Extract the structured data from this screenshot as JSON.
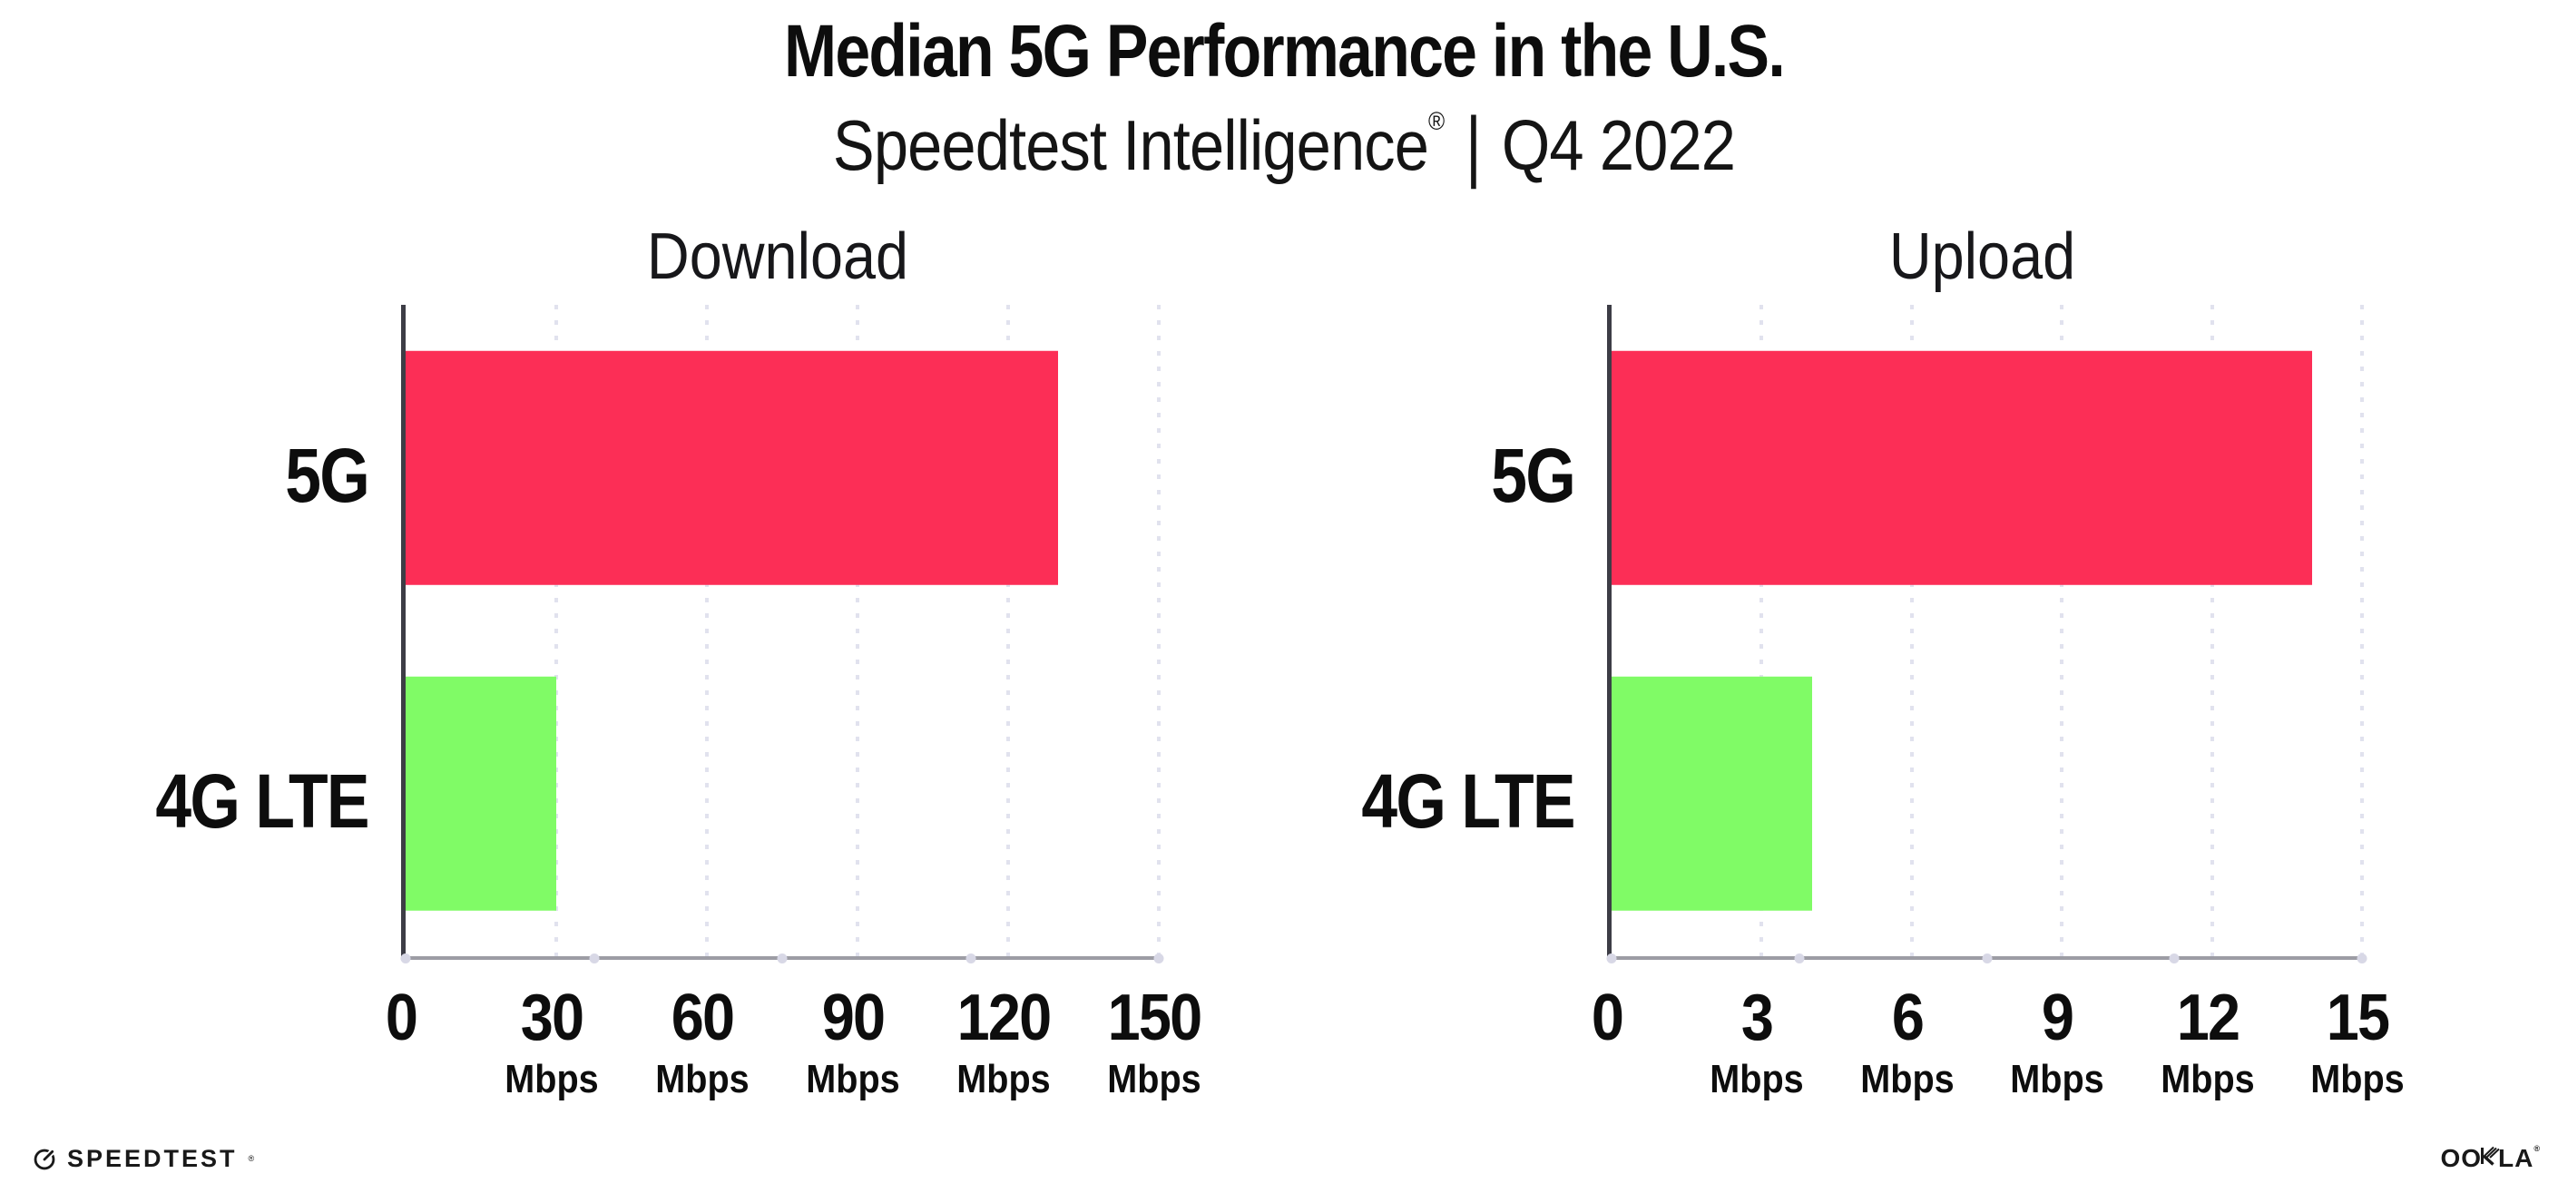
{
  "header": {
    "title": "Median 5G Performance in the U.S.",
    "subtitle_brand": "Speedtest Intelligence",
    "subtitle_registered": "®",
    "subtitle_separator": "|",
    "subtitle_period": "Q4 2022"
  },
  "chart_data": [
    {
      "type": "bar",
      "orientation": "horizontal",
      "title": "Download",
      "categories": [
        "5G",
        "4G LTE"
      ],
      "values": [
        130,
        30
      ],
      "unit": "Mbps",
      "xticks": [
        0,
        30,
        60,
        90,
        120,
        150
      ],
      "xlim": [
        0,
        150
      ],
      "grid": "dotted-vertical",
      "legend": "none",
      "bar_colors": [
        "#FC2E56",
        "#80FB66"
      ]
    },
    {
      "type": "bar",
      "orientation": "horizontal",
      "title": "Upload",
      "categories": [
        "5G",
        "4G LTE"
      ],
      "values": [
        14,
        4
      ],
      "unit": "Mbps",
      "xticks": [
        0,
        3,
        6,
        9,
        12,
        15
      ],
      "xlim": [
        0,
        15
      ],
      "grid": "dotted-vertical",
      "legend": "none",
      "bar_colors": [
        "#FC2E56",
        "#80FB66"
      ]
    }
  ],
  "footer": {
    "speedtest_text": "SPEEDTEST",
    "speedtest_mark": "®",
    "ookla_text_left": "OO",
    "ookla_text_right": "LA",
    "ookla_k": "K",
    "ookla_mark": "®"
  },
  "colors": {
    "bar_5g": "#FC2E56",
    "bar_4g_lte": "#80FB66",
    "grid": "#e1e2ee",
    "axis_y": "#3d3d46",
    "axis_x": "#9c9ca4",
    "tick_dot": "#d8d8e6",
    "text": "#0d0d0d"
  }
}
